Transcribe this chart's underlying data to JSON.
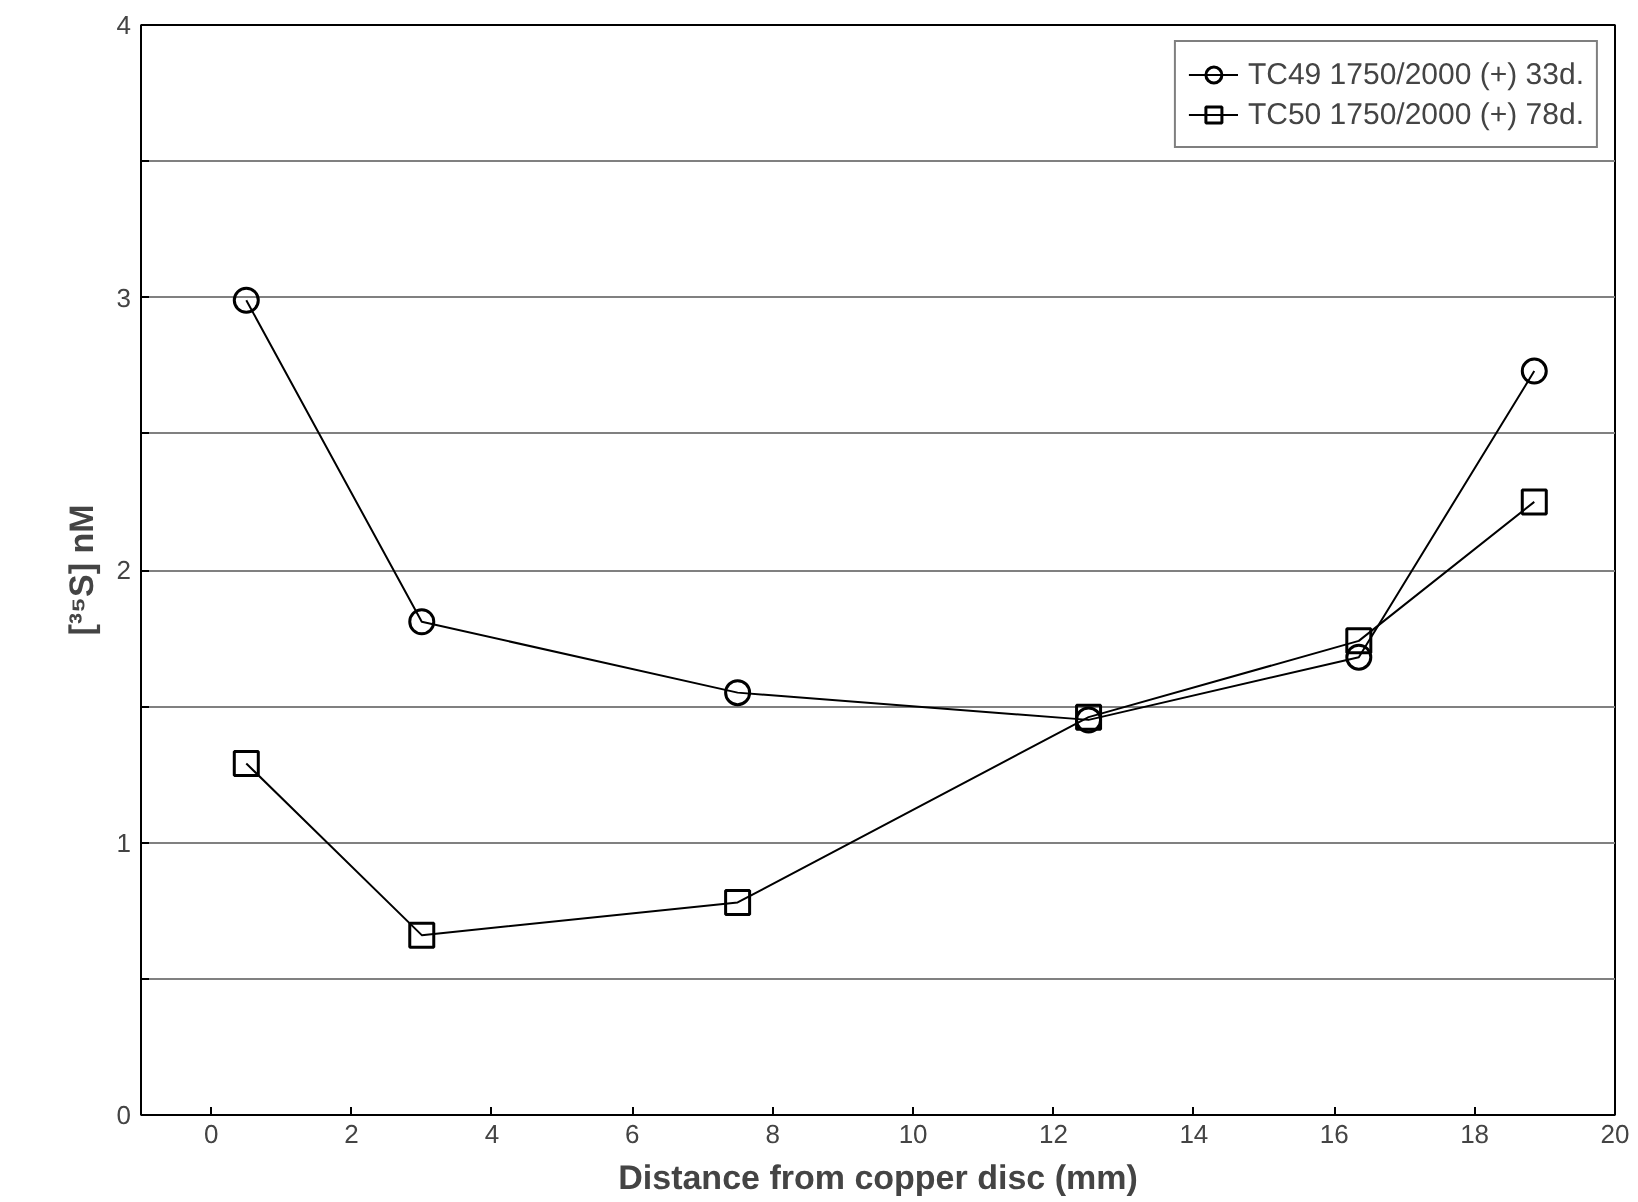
{
  "chart_data": {
    "type": "line",
    "xlabel": "Distance from copper disc (mm)",
    "ylabel": "[³⁵S] nM",
    "x": [
      0.5,
      3,
      7.5,
      12.5,
      16.35,
      18.85
    ],
    "series": [
      {
        "name": "TC49 1750/2000 (+) 33d.",
        "color": "#000000",
        "marker": "circle",
        "values": [
          2.99,
          1.81,
          1.55,
          1.45,
          1.68,
          2.73
        ]
      },
      {
        "name": "TC50 1750/2000 (+) 78d.",
        "color": "#000000",
        "marker": "square",
        "values": [
          1.29,
          0.66,
          0.78,
          1.46,
          1.74,
          2.25
        ]
      }
    ],
    "xlim": [
      -1,
      20
    ],
    "xticks": [
      0,
      2,
      4,
      6,
      8,
      10,
      12,
      14,
      16,
      18,
      20
    ],
    "ylim": [
      0,
      4
    ],
    "yticks": [
      0,
      {
        "value": 0.5,
        "label": null
      },
      1,
      {
        "value": 1.5,
        "label": null
      },
      2,
      {
        "value": 2.5,
        "label": null
      },
      3,
      {
        "value": 3.5,
        "label": null
      },
      4
    ],
    "grid": "y",
    "legend": "top right",
    "line_style": "solid"
  }
}
